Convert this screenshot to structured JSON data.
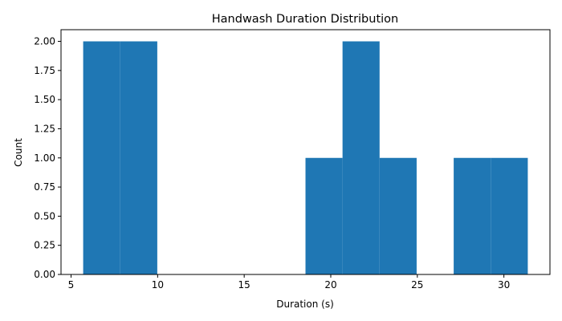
{
  "chart_data": {
    "type": "bar",
    "subtype": "histogram",
    "title": "Handwash Duration Distribution",
    "xlabel": "Duration (s)",
    "ylabel": "Count",
    "bins": [
      {
        "x0": 5.7,
        "x1": 7.84,
        "count": 2
      },
      {
        "x0": 7.84,
        "x1": 9.98,
        "count": 2
      },
      {
        "x0": 9.98,
        "x1": 12.12,
        "count": 0
      },
      {
        "x0": 12.12,
        "x1": 14.26,
        "count": 0
      },
      {
        "x0": 14.26,
        "x1": 16.4,
        "count": 0
      },
      {
        "x0": 16.4,
        "x1": 18.54,
        "count": 0
      },
      {
        "x0": 18.54,
        "x1": 20.68,
        "count": 1
      },
      {
        "x0": 20.68,
        "x1": 22.82,
        "count": 2
      },
      {
        "x0": 22.82,
        "x1": 24.96,
        "count": 1
      },
      {
        "x0": 24.96,
        "x1": 27.1,
        "count": 0
      },
      {
        "x0": 27.1,
        "x1": 29.24,
        "count": 1
      },
      {
        "x0": 29.24,
        "x1": 31.38,
        "count": 1
      }
    ],
    "xlim": [
      4.42,
      32.66
    ],
    "ylim": [
      0,
      2.1
    ],
    "xticks": [
      5,
      10,
      15,
      20,
      25,
      30
    ],
    "xtick_labels": [
      "5",
      "10",
      "15",
      "20",
      "25",
      "30"
    ],
    "yticks": [
      0,
      0.25,
      0.5,
      0.75,
      1.0,
      1.25,
      1.5,
      1.75,
      2.0
    ],
    "ytick_labels": [
      "0.00",
      "0.25",
      "0.50",
      "0.75",
      "1.00",
      "1.25",
      "1.50",
      "1.75",
      "2.00"
    ],
    "grid": false,
    "legend": null,
    "colors": {
      "bar": "#1f77b4",
      "axis": "#000000",
      "background": "#ffffff"
    }
  }
}
